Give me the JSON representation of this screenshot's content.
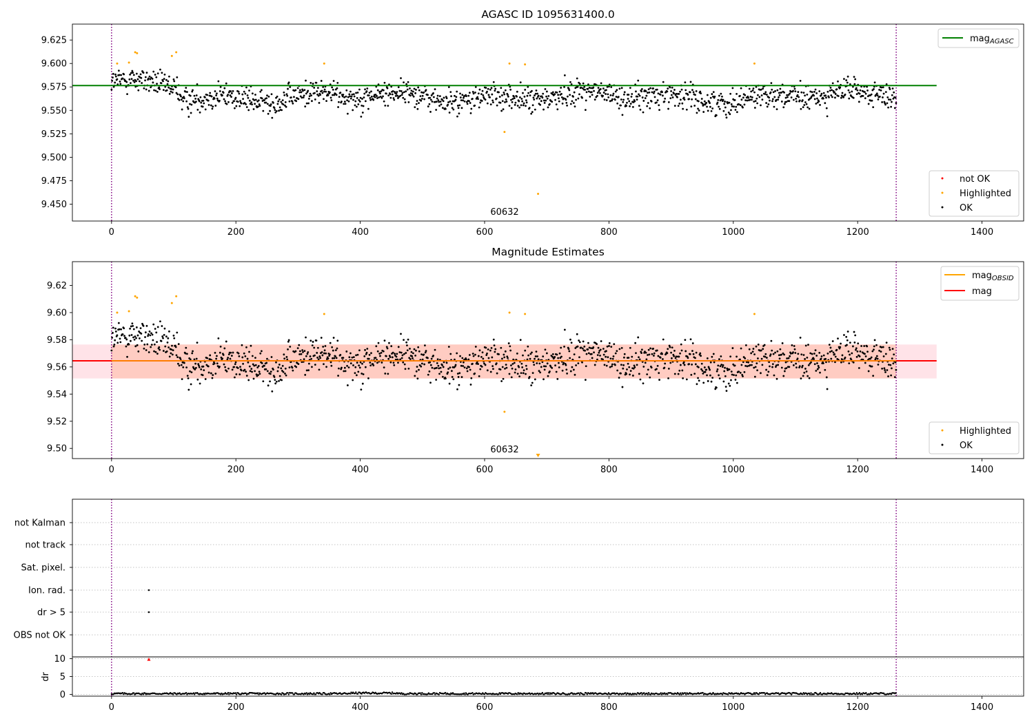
{
  "chart_data": [
    {
      "type": "scatter",
      "title": "AGASC ID 1095631400.0",
      "xlim": [
        -63,
        1467
      ],
      "ylim": [
        9.432,
        9.642
      ],
      "xticks": [
        0,
        200,
        400,
        600,
        800,
        1000,
        1200,
        1400
      ],
      "yticks": [
        9.45,
        9.475,
        9.5,
        9.525,
        9.55,
        9.575,
        9.6,
        9.625
      ],
      "ytick_labels": [
        "9.450",
        "9.475",
        "9.500",
        "9.525",
        "9.550",
        "9.575",
        "9.600",
        "9.625"
      ],
      "vlines": [
        0,
        1262
      ],
      "annotation": {
        "text": "60632",
        "x": 630,
        "y": 9.437
      },
      "hline": {
        "name": "mag_AGASC",
        "y": 9.5765,
        "x_range": [
          -63,
          1327
        ],
        "color": "#008000"
      },
      "legend_top": [
        {
          "label": "mag",
          "sub": "AGASC",
          "color": "#008000",
          "kind": "line"
        }
      ],
      "legend_bottom": [
        {
          "label": "not OK",
          "color": "#ff0000",
          "kind": "dot"
        },
        {
          "label": "Highlighted",
          "color": "#ffa500",
          "kind": "dot"
        },
        {
          "label": "OK",
          "color": "#000000",
          "kind": "dot"
        }
      ],
      "series": [
        {
          "name": "Highlighted",
          "color": "#ffa500",
          "points": [
            [
              9,
              9.6
            ],
            [
              28,
              9.601
            ],
            [
              38,
              9.612
            ],
            [
              41,
              9.611
            ],
            [
              97,
              9.608
            ],
            [
              104,
              9.612
            ],
            [
              342,
              9.6
            ],
            [
              632,
              9.527
            ],
            [
              640,
              9.6
            ],
            [
              665,
              9.599
            ],
            [
              686,
              9.461
            ],
            [
              1034,
              9.6
            ]
          ]
        }
      ]
    },
    {
      "type": "scatter",
      "title": "Magnitude Estimates",
      "xlim": [
        -63,
        1467
      ],
      "ylim": [
        9.4925,
        9.6375
      ],
      "xticks": [
        0,
        200,
        400,
        600,
        800,
        1000,
        1200,
        1400
      ],
      "yticks": [
        9.5,
        9.52,
        9.54,
        9.56,
        9.58,
        9.6,
        9.62
      ],
      "ytick_labels": [
        "9.50",
        "9.52",
        "9.54",
        "9.56",
        "9.58",
        "9.60",
        "9.62"
      ],
      "vlines": [
        0,
        1262
      ],
      "annotation": {
        "text": "60632",
        "x": 630,
        "y": 9.495
      },
      "band": {
        "y_range": [
          9.5515,
          9.5765
        ],
        "x_range": [
          -63,
          1327
        ]
      },
      "mag_line": {
        "y": 9.5645,
        "x_range": [
          -63,
          1327
        ]
      },
      "off_scale_marker": {
        "x": 686
      },
      "legend_top": [
        {
          "label": "mag",
          "sub": "OBSID",
          "color": "#ffa500",
          "kind": "line"
        },
        {
          "label": "mag",
          "sub": "",
          "color": "#ff0000",
          "kind": "line"
        }
      ],
      "legend_bottom": [
        {
          "label": "Highlighted",
          "color": "#ffa500",
          "kind": "dot"
        },
        {
          "label": "OK",
          "color": "#000000",
          "kind": "dot"
        }
      ],
      "series": [
        {
          "name": "Highlighted",
          "color": "#ffa500",
          "points": [
            [
              9,
              9.6
            ],
            [
              28,
              9.601
            ],
            [
              38,
              9.612
            ],
            [
              41,
              9.611
            ],
            [
              97,
              9.607
            ],
            [
              104,
              9.612
            ],
            [
              342,
              9.599
            ],
            [
              632,
              9.527
            ],
            [
              640,
              9.6
            ],
            [
              665,
              9.599
            ],
            [
              1034,
              9.599
            ]
          ]
        }
      ]
    },
    {
      "type": "scatter",
      "title": "",
      "xlim": [
        -63,
        1467
      ],
      "xticks": [
        0,
        200,
        400,
        600,
        800,
        1000,
        1200,
        1400
      ],
      "vlines": [
        0,
        1262
      ],
      "categories": [
        "not Kalman",
        "not track",
        "Sat. pixel.",
        "Ion. rad.",
        "dr > 5",
        "OBS not OK"
      ],
      "flag_points": [
        {
          "category": "Ion. rad.",
          "x": 60
        },
        {
          "category": "dr > 5",
          "x": 60
        }
      ],
      "dr": {
        "ylabel": "dr",
        "yticks": [
          0,
          5,
          10
        ],
        "ylim": [
          -0.5,
          10.5
        ],
        "marker": {
          "x": 60,
          "y": 9.8,
          "color": "#ff0000"
        },
        "baseline_level": 0.2
      }
    }
  ]
}
